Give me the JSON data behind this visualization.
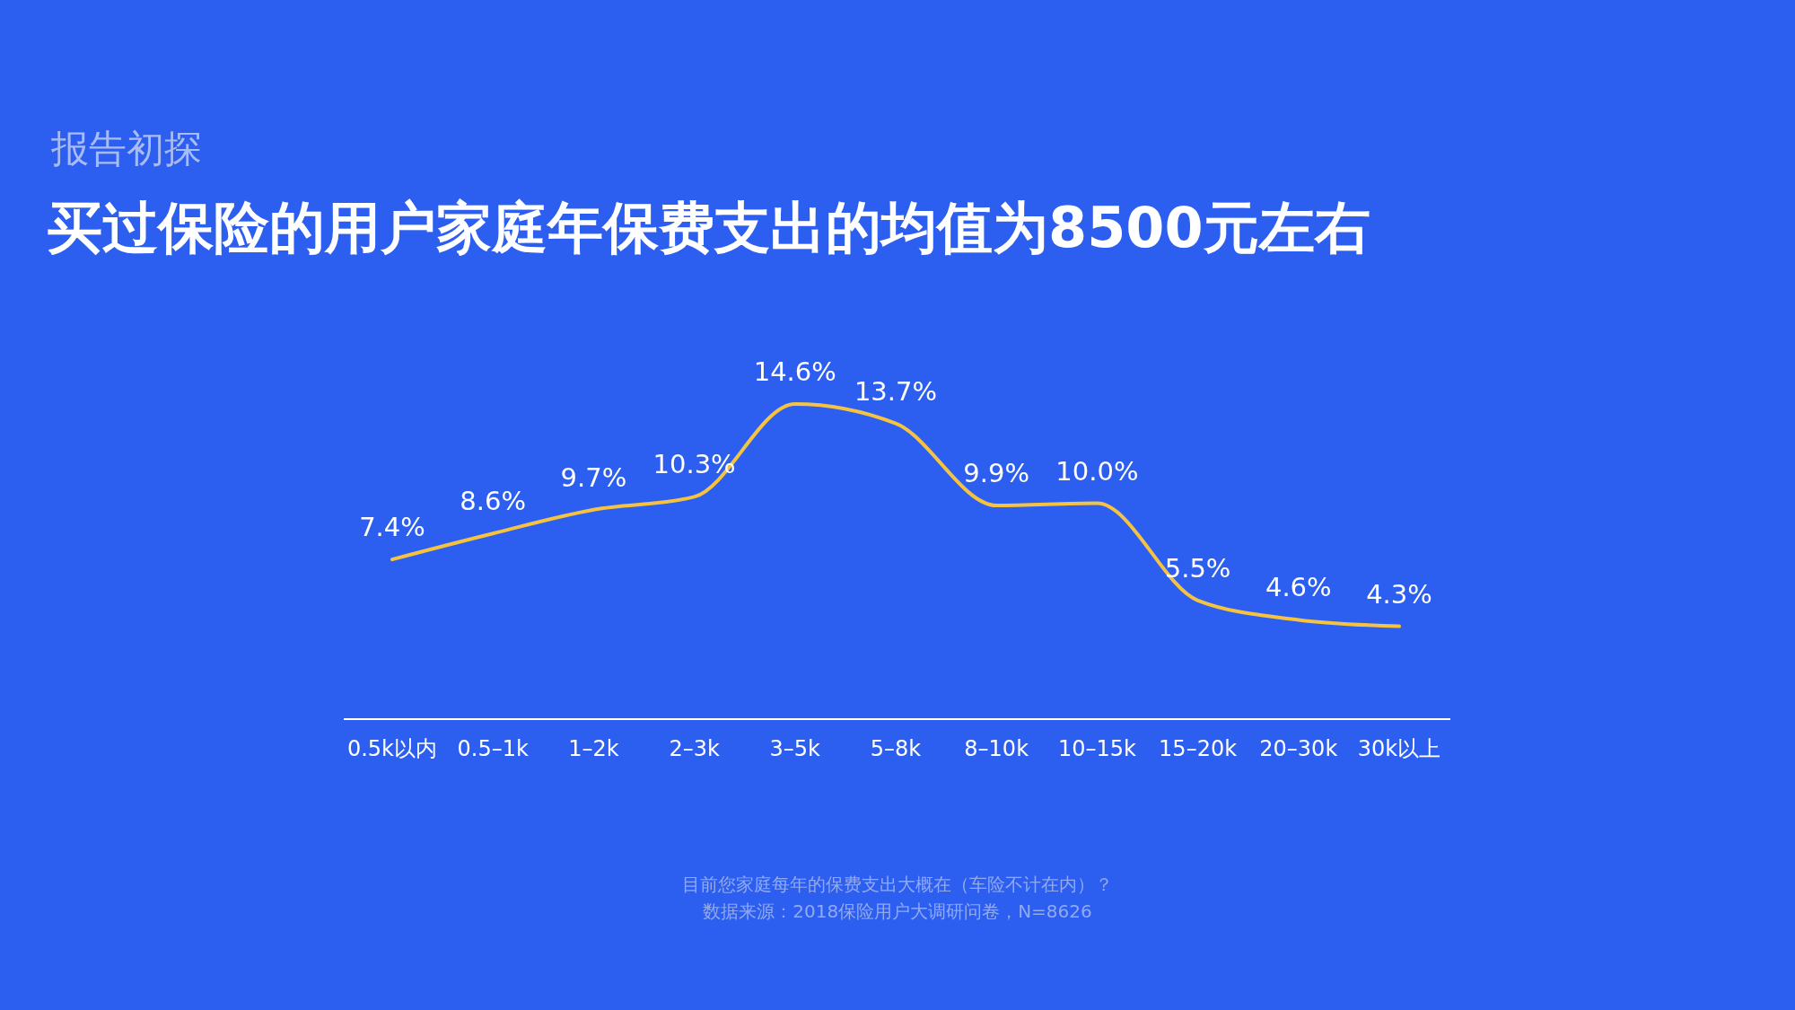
{
  "chart_data": {
    "type": "line",
    "subtitle": "报告初探",
    "title": "买过保险的用户家庭年保费支出的均值为8500元左右",
    "categories": [
      "0.5k以内",
      "0.5–1k",
      "1–2k",
      "2–3k",
      "3–5k",
      "5–8k",
      "8–10k",
      "10–15k",
      "15–20k",
      "20–30k",
      "30k以上"
    ],
    "series": [
      {
        "color": "#f5c242",
        "values": [
          7.4,
          8.6,
          9.7,
          10.3,
          14.6,
          13.7,
          9.9,
          10.0,
          5.5,
          4.6,
          4.3
        ],
        "value_labels": [
          "7.4%",
          "8.6%",
          "9.7%",
          "10.3%",
          "14.6%",
          "13.7%",
          "9.9%",
          "10.0%",
          "5.5%",
          "4.6%",
          "4.3%"
        ]
      }
    ],
    "tick_labels": "x",
    "marker": "none",
    "line_style": "solid",
    "annotations": [
      "目前您家庭每年的保费支出大概在（车险不计在内）？",
      "数据来源：2018保险用户大调研问卷，N=8626"
    ]
  }
}
